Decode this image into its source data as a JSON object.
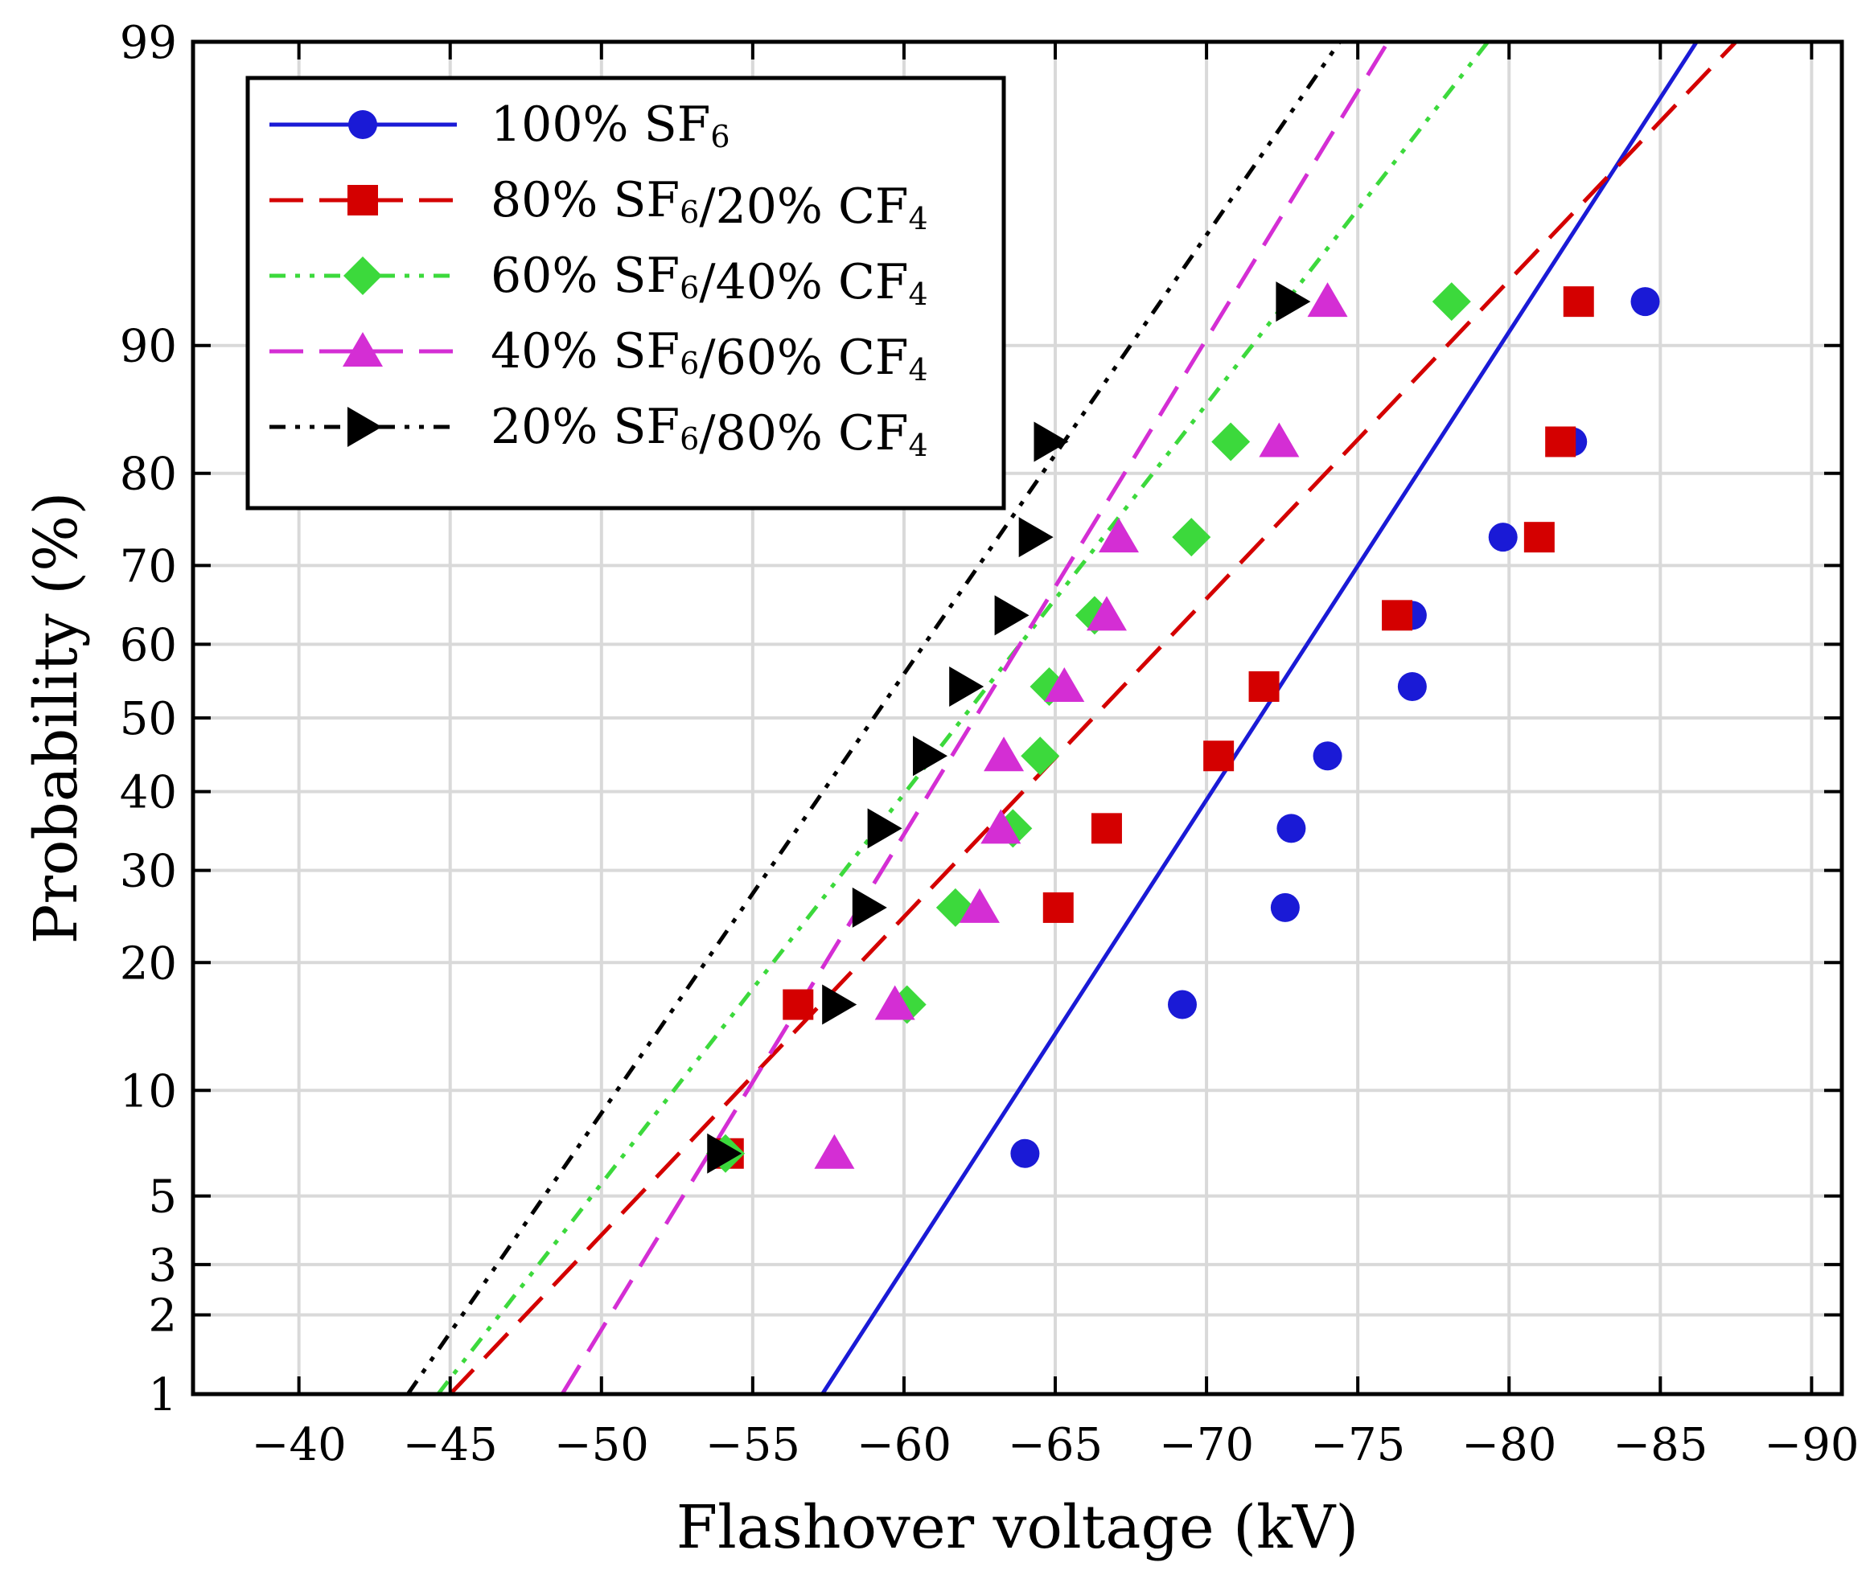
{
  "chart_data": {
    "type": "line",
    "title": "",
    "xlabel": "Flashover voltage (kV)",
    "ylabel": "Probability (%)",
    "xlim": [
      -36.5,
      -91
    ],
    "yscale": "normal-probability",
    "ylim": [
      1,
      99
    ],
    "x_ticks": [
      -40,
      -45,
      -50,
      -55,
      -60,
      -65,
      -70,
      -75,
      -80,
      -85,
      -90
    ],
    "x_tick_labels": [
      "−40",
      "−45",
      "−50",
      "−55",
      "−60",
      "−65",
      "−70",
      "−75",
      "−80",
      "−85",
      "−90"
    ],
    "y_ticks": [
      1,
      2,
      3,
      5,
      10,
      20,
      30,
      40,
      50,
      60,
      70,
      80,
      90,
      99
    ],
    "y_tick_labels": [
      "1",
      "2",
      "3",
      "5",
      "10",
      "20",
      "30",
      "40",
      "50",
      "60",
      "70",
      "80",
      "90",
      "99"
    ],
    "grid": true,
    "legend_position": "top-left",
    "series": [
      {
        "name": "100% SF6",
        "label_main": "100% SF",
        "label_parts": [
          [
            "100% SF",
            "6"
          ]
        ],
        "color": "#1a1ad6",
        "marker": "circle",
        "dash": "solid",
        "points": [
          [
            -64.0,
            6.7
          ],
          [
            -69.2,
            16.2
          ],
          [
            -72.6,
            25.7
          ],
          [
            -72.8,
            35.2
          ],
          [
            -74.0,
            44.8
          ],
          [
            -76.8,
            54.3
          ],
          [
            -76.8,
            63.8
          ],
          [
            -79.8,
            73.3
          ],
          [
            -82.1,
            82.9
          ],
          [
            -84.5,
            92.4
          ]
        ],
        "fit": [
          [
            -57.3,
            1
          ],
          [
            -86.2,
            99
          ]
        ]
      },
      {
        "name": "80% SF6/20% CF4",
        "label_parts": [
          [
            "80% SF",
            "6"
          ],
          [
            "/20% CF",
            "4"
          ]
        ],
        "color": "#d40000",
        "marker": "square",
        "dash": "dashed",
        "points": [
          [
            -54.2,
            6.7
          ],
          [
            -56.5,
            16.2
          ],
          [
            -65.1,
            25.7
          ],
          [
            -66.7,
            35.2
          ],
          [
            -70.4,
            44.8
          ],
          [
            -71.9,
            54.3
          ],
          [
            -76.3,
            63.8
          ],
          [
            -81.0,
            73.3
          ],
          [
            -81.7,
            82.9
          ],
          [
            -82.3,
            92.4
          ]
        ],
        "fit": [
          [
            -45.0,
            1
          ],
          [
            -87.5,
            99
          ]
        ]
      },
      {
        "name": "60% SF6/40% CF4",
        "label_parts": [
          [
            "60% SF",
            "6"
          ],
          [
            "/40% CF",
            "4"
          ]
        ],
        "color": "#3cd93c",
        "marker": "diamond",
        "dash": "dashdotdot",
        "points": [
          [
            -54.1,
            6.7
          ],
          [
            -60.1,
            16.2
          ],
          [
            -61.7,
            25.7
          ],
          [
            -63.6,
            35.2
          ],
          [
            -64.5,
            44.8
          ],
          [
            -64.8,
            54.3
          ],
          [
            -66.3,
            63.8
          ],
          [
            -69.5,
            73.3
          ],
          [
            -70.8,
            82.9
          ],
          [
            -78.1,
            92.4
          ]
        ],
        "fit": [
          [
            -44.6,
            1
          ],
          [
            -79.3,
            99
          ]
        ]
      },
      {
        "name": "40% SF6/60% CF4",
        "label_parts": [
          [
            "40% SF",
            "6"
          ],
          [
            "/60% CF",
            "4"
          ]
        ],
        "color": "#d42ed4",
        "marker": "triangle",
        "dash": "dashed",
        "points": [
          [
            -57.7,
            6.7
          ],
          [
            -59.7,
            16.2
          ],
          [
            -62.5,
            25.7
          ],
          [
            -63.2,
            35.2
          ],
          [
            -63.3,
            44.8
          ],
          [
            -65.3,
            54.3
          ],
          [
            -66.7,
            63.8
          ],
          [
            -67.1,
            73.3
          ],
          [
            -72.4,
            82.9
          ],
          [
            -74.0,
            92.4
          ]
        ],
        "fit": [
          [
            -48.7,
            1
          ],
          [
            -76.0,
            99
          ]
        ]
      },
      {
        "name": "20% SF6/80% CF4",
        "label_parts": [
          [
            "20% SF",
            "6"
          ],
          [
            "/80% CF",
            "4"
          ]
        ],
        "color": "#000000",
        "marker": "triangle-right",
        "dash": "dashdotdot",
        "points": [
          [
            -54.0,
            6.7
          ],
          [
            -57.8,
            16.2
          ],
          [
            -58.8,
            25.7
          ],
          [
            -59.3,
            35.2
          ],
          [
            -60.8,
            44.8
          ],
          [
            -62.0,
            54.3
          ],
          [
            -63.5,
            63.8
          ],
          [
            -64.3,
            73.3
          ],
          [
            -64.8,
            82.9
          ],
          [
            -72.8,
            92.4
          ]
        ],
        "fit": [
          [
            -43.6,
            1
          ],
          [
            -74.4,
            99
          ]
        ]
      }
    ]
  }
}
